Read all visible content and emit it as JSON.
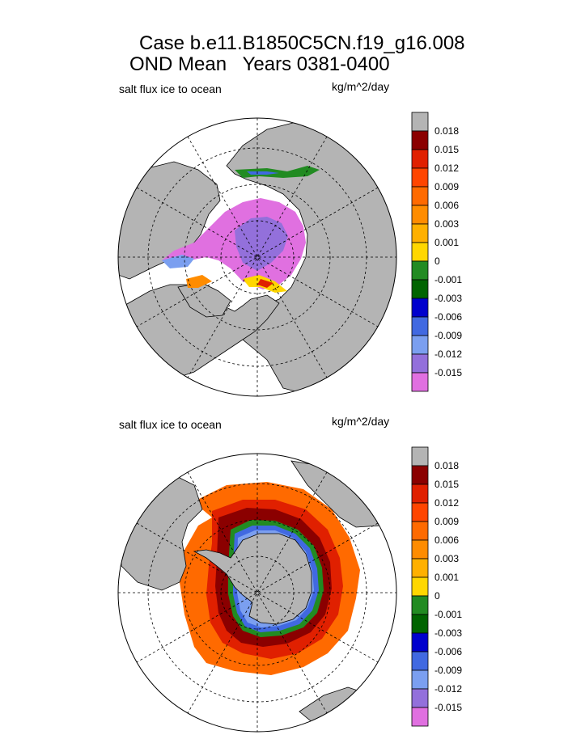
{
  "header": {
    "title_line1": "Case b.e11.B1850C5CN.f19_g16.008",
    "title_line2": "OND Mean   Years 0381-0400"
  },
  "panels": [
    {
      "left_label": "salt flux ice to ocean",
      "units_label": "kg/m^2/day",
      "hemisphere": "north"
    },
    {
      "left_label": "salt flux ice to ocean",
      "units_label": "kg/m^2/day",
      "hemisphere": "south"
    }
  ],
  "colorbar": {
    "labels": [
      "0.018",
      "0.015",
      "0.012",
      "0.009",
      "0.006",
      "0.003",
      "0.001",
      "0",
      "-0.001",
      "-0.003",
      "-0.006",
      "-0.009",
      "-0.012",
      "-0.015"
    ],
    "colors": [
      "#b4b4b4",
      "#8b0000",
      "#e02000",
      "#ff4500",
      "#ff6a00",
      "#ff8c00",
      "#ffb000",
      "#ffd700",
      "#228b22",
      "#006400",
      "#0000cd",
      "#4169e1",
      "#7b9ff0",
      "#9370db",
      "#e070e0"
    ]
  },
  "map_colors": {
    "land": "#b4b4b4",
    "ice_interior_north": "#e070e0",
    "ice_core_north": "#9370db"
  }
}
